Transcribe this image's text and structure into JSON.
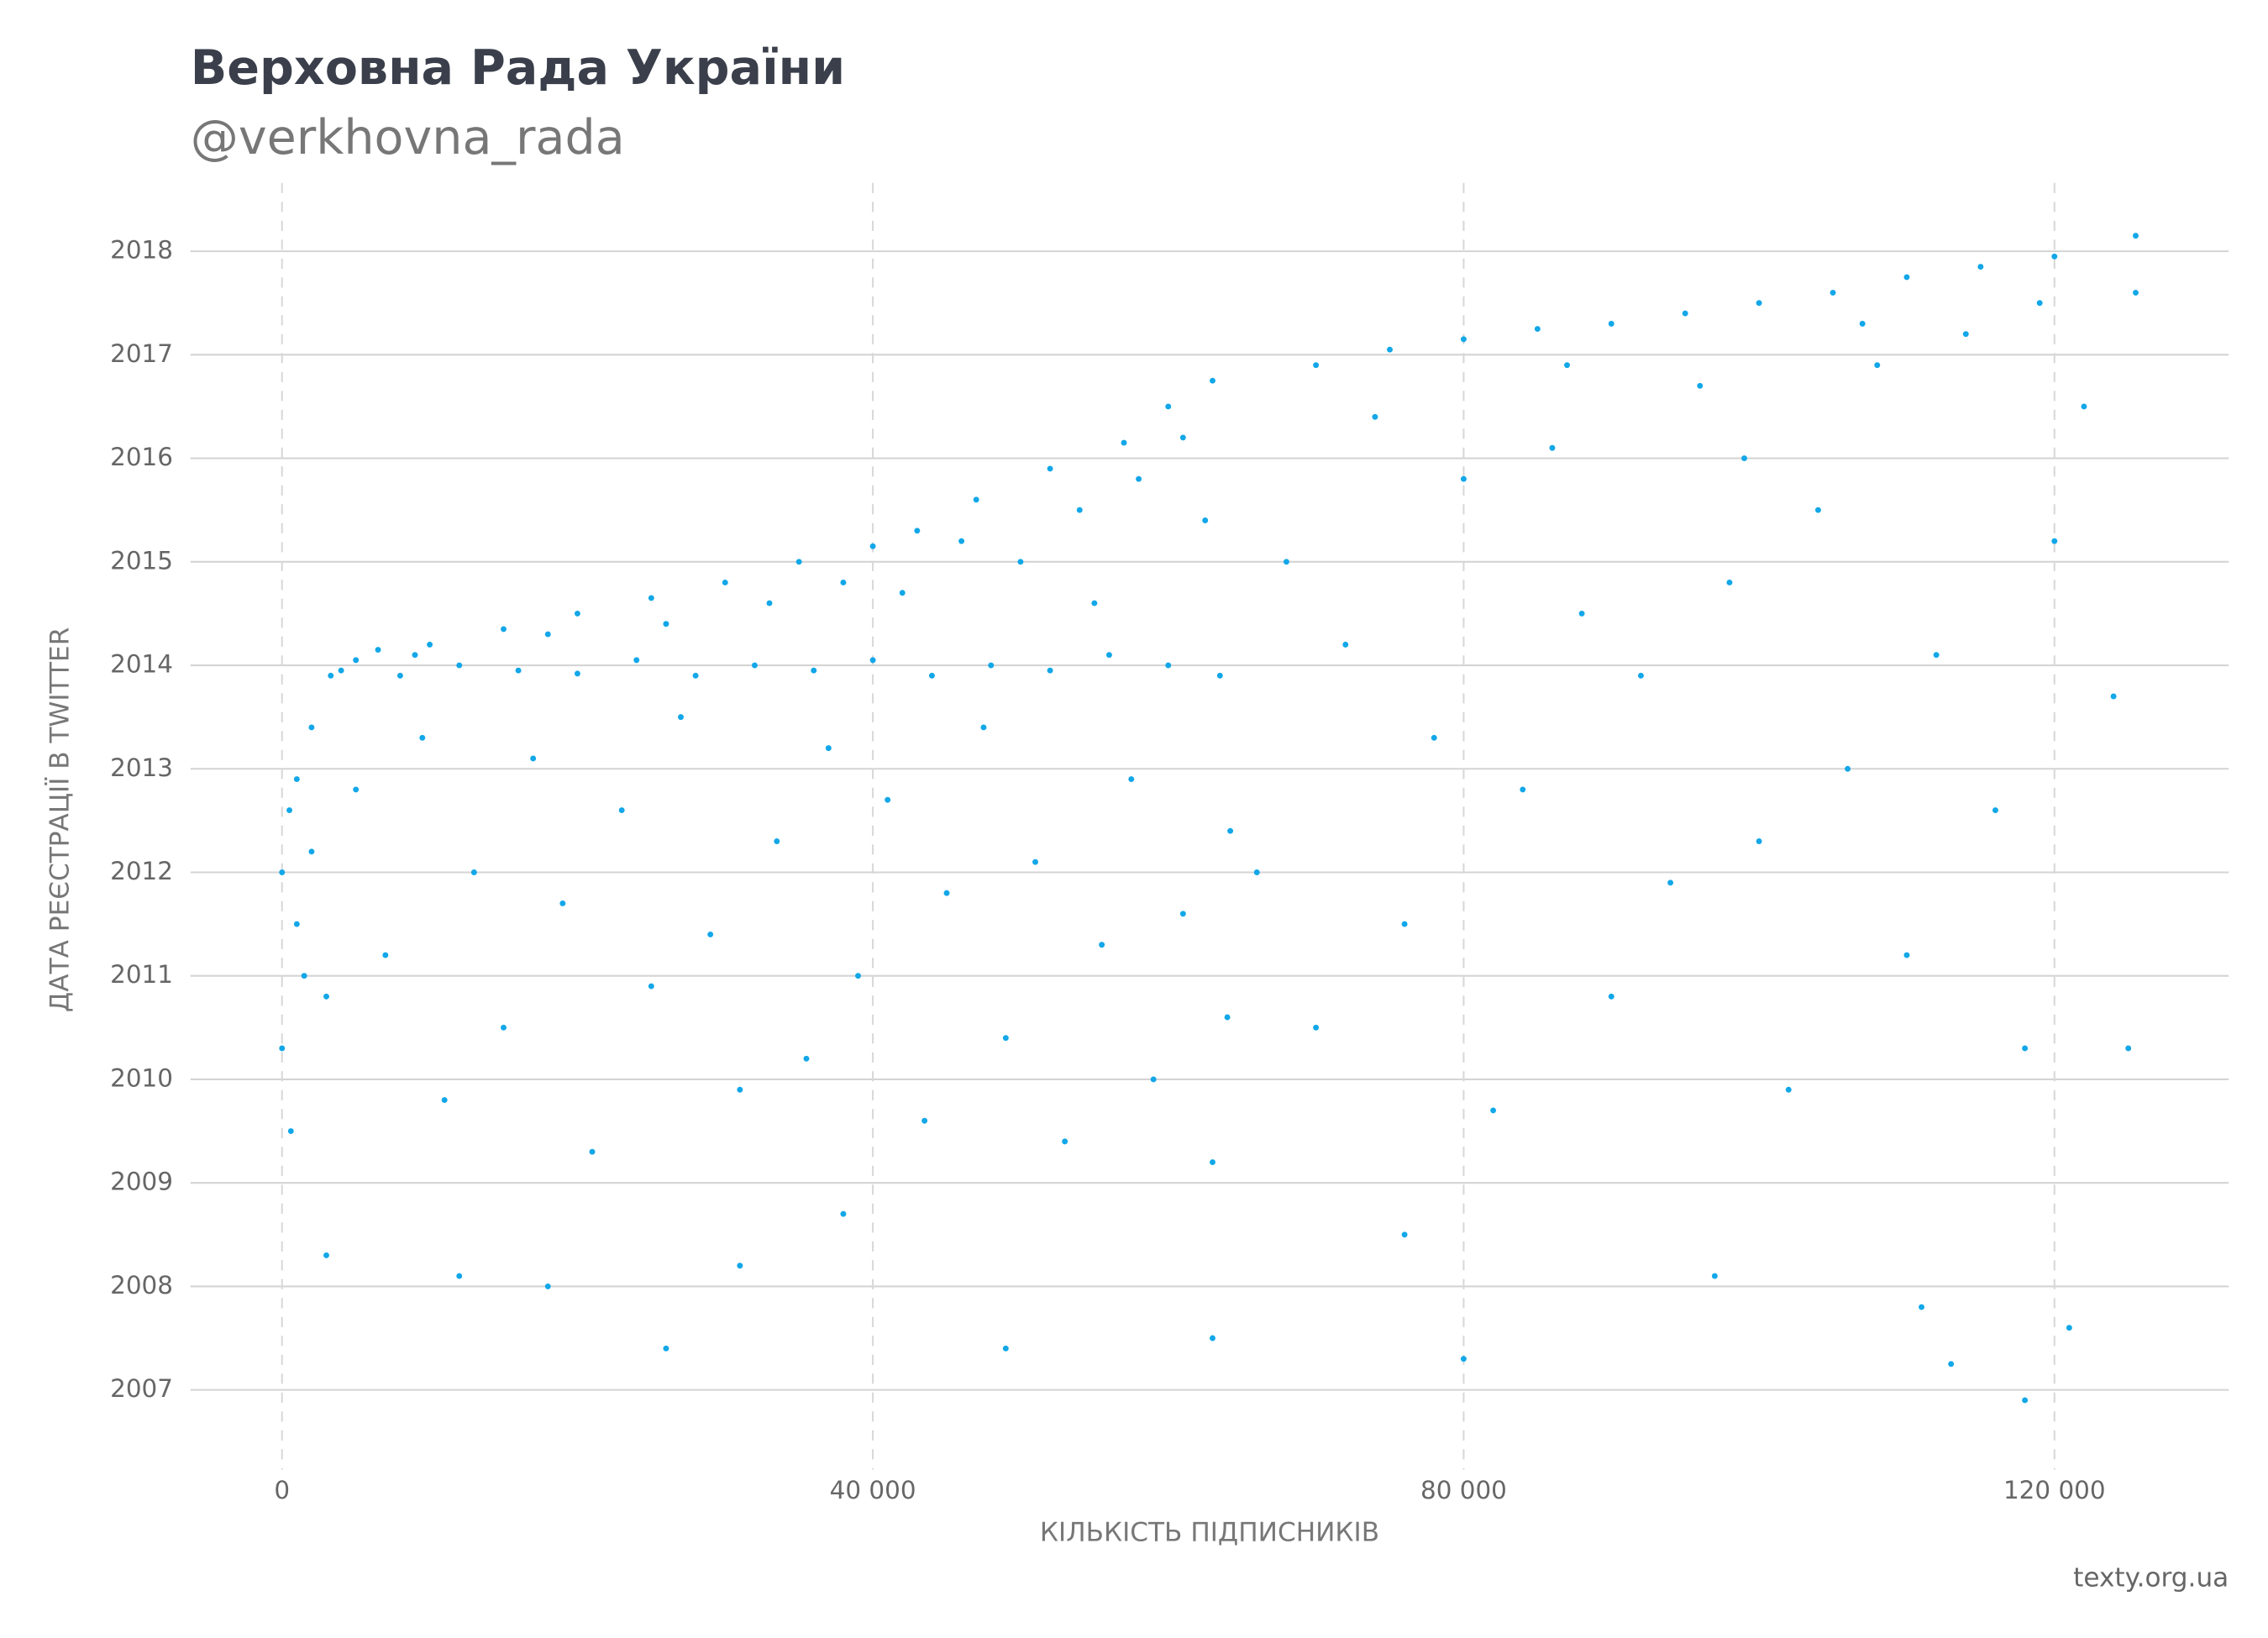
{
  "chart_data": {
    "type": "scatter",
    "title": "Верховна Рада України",
    "subtitle": "@verkhovna_rada",
    "x_label": "КІЛЬКІСТЬ ПІДПИСНИКІВ",
    "y_label": "ДАТА РЕЄСТРАЦІЇ В TWITTER",
    "source": "texty.org.ua",
    "color": "#12a7e8",
    "xlim": [
      -6200,
      131800
    ],
    "ylim": [
      2006.23,
      2018.66
    ],
    "xticks": [
      0,
      {
        "value": 40000,
        "label": "40 000"
      },
      {
        "value": 80000,
        "label": "80 000"
      },
      {
        "value": 120000,
        "label": "120 000"
      }
    ],
    "yticks": [
      2007,
      2008,
      2009,
      2010,
      2011,
      2012,
      2013,
      2014,
      2015,
      2016,
      2017,
      2018
    ],
    "grid": true,
    "x": [
      0,
      500,
      1000,
      2000,
      3300,
      5000,
      6500,
      10000,
      15000,
      20000,
      25000,
      30000,
      35000,
      40000,
      43000,
      47000,
      52000,
      57000,
      60000,
      63000,
      70000,
      75000,
      80000,
      85000,
      90000,
      95000,
      100000,
      105000,
      110000,
      115000,
      120000,
      125500,
      4000,
      8000,
      12000,
      16000,
      20000,
      24000,
      28000,
      32000,
      36000,
      40000,
      44000,
      48000,
      52000,
      56000,
      60000,
      63500,
      9000,
      18000,
      26000,
      33000,
      38000,
      42000,
      46000,
      50000,
      54000,
      58000,
      61000,
      62500,
      55000,
      1000,
      2000,
      3000,
      5000,
      7000,
      9500,
      11000,
      13000,
      15000,
      17000,
      19000,
      21000,
      23000,
      25000,
      27000,
      29000,
      31000,
      33500,
      35500,
      37000,
      39000,
      41000,
      43500,
      45000,
      47500,
      49000,
      51000,
      53000,
      55500,
      57500,
      59000,
      61000,
      63000,
      64000,
      64200,
      0,
      600,
      1500,
      3000,
      12000,
      18000,
      26000,
      31000,
      38000,
      49000,
      63000,
      76000,
      80000,
      97000,
      111000,
      118000,
      121000,
      113000,
      66000,
      68000,
      70000,
      72000,
      74000,
      76000,
      78000,
      80000,
      82000,
      84000,
      86000,
      88000,
      90000,
      92000,
      94000,
      96000,
      98000,
      100000,
      102000,
      104000,
      106000,
      108000,
      110000,
      112000,
      114000,
      116000,
      118000,
      120000,
      122000,
      124000,
      125500,
      125000,
      119000,
      107000,
      99000,
      87000
    ],
    "values": [
      2012.0,
      2012.6,
      2012.9,
      2013.4,
      2013.9,
      2014.05,
      2014.15,
      2014.2,
      2014.35,
      2014.5,
      2014.65,
      2014.8,
      2015.0,
      2015.15,
      2015.3,
      2015.6,
      2015.9,
      2016.15,
      2016.5,
      2016.75,
      2016.9,
      2017.05,
      2017.15,
      2017.25,
      2017.3,
      2017.4,
      2017.5,
      2017.6,
      2017.75,
      2017.85,
      2017.95,
      2018.15,
      2013.95,
      2013.9,
      2014.0,
      2013.95,
      2013.92,
      2014.05,
      2013.9,
      2014.0,
      2013.95,
      2014.05,
      2013.9,
      2014.0,
      2013.95,
      2014.1,
      2014.0,
      2013.9,
      2014.1,
      2014.3,
      2014.4,
      2014.6,
      2014.8,
      2014.7,
      2015.2,
      2015.0,
      2015.5,
      2015.8,
      2016.2,
      2015.4,
      2014.6,
      2011.5,
      2012.2,
      2010.8,
      2012.8,
      2011.2,
      2013.3,
      2009.8,
      2012.0,
      2010.5,
      2013.1,
      2011.7,
      2009.3,
      2012.6,
      2010.9,
      2013.5,
      2011.4,
      2009.9,
      2012.3,
      2010.2,
      2013.2,
      2011.0,
      2012.7,
      2009.6,
      2011.8,
      2013.4,
      2010.4,
      2012.1,
      2009.4,
      2011.3,
      2012.9,
      2010.0,
      2011.6,
      2009.2,
      2010.6,
      2012.4,
      2010.3,
      2009.5,
      2011.0,
      2008.3,
      2008.1,
      2008.0,
      2007.4,
      2008.2,
      2008.7,
      2007.4,
      2007.5,
      2008.5,
      2007.3,
      2008.1,
      2007.8,
      2006.9,
      2007.6,
      2007.25,
      2012.0,
      2015.0,
      2010.5,
      2014.2,
      2016.4,
      2011.5,
      2013.3,
      2015.8,
      2009.7,
      2012.8,
      2016.1,
      2014.5,
      2010.8,
      2013.9,
      2011.9,
      2016.7,
      2014.8,
      2012.3,
      2009.9,
      2015.5,
      2013.0,
      2016.9,
      2011.2,
      2014.1,
      2017.2,
      2012.6,
      2010.3,
      2015.2,
      2016.5,
      2013.7,
      2017.6,
      2010.3,
      2017.5,
      2017.3,
      2016.0,
      2016.9
    ]
  }
}
